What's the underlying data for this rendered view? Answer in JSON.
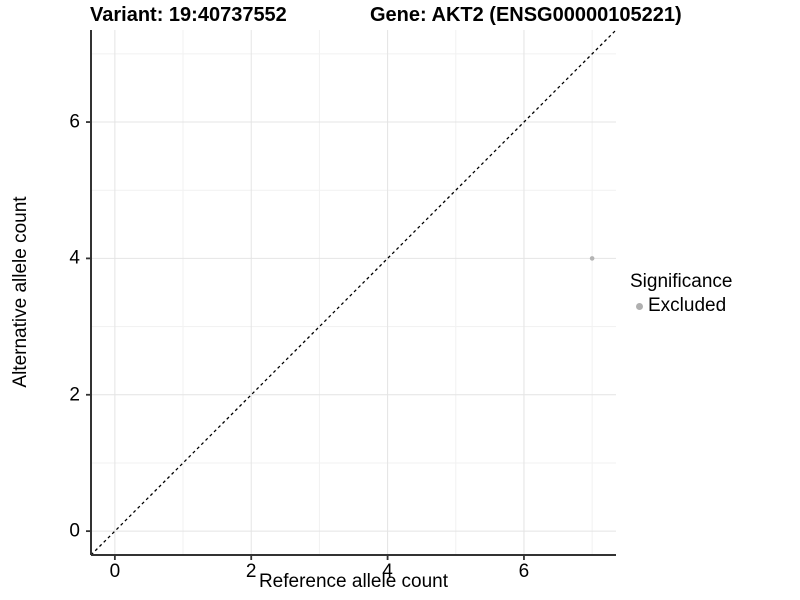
{
  "header": {
    "variant_title": "Variant: 19:40737552",
    "gene_title": "Gene: AKT2 (ENSG00000105221)"
  },
  "chart_data": {
    "type": "scatter",
    "title_left": "Variant: 19:40737552",
    "title_right": "Gene: AKT2 (ENSG00000105221)",
    "xlabel": "Reference allele count",
    "ylabel": "Alternative allele count",
    "xlim": [
      -0.35,
      7.35
    ],
    "ylim": [
      -0.35,
      7.35
    ],
    "x_ticks": [
      0,
      2,
      4,
      6
    ],
    "y_ticks": [
      0,
      2,
      4,
      6
    ],
    "x_minor_ticks": [
      1,
      3,
      5,
      7
    ],
    "y_minor_ticks": [
      1,
      3,
      5,
      7
    ],
    "grid": true,
    "reference_line": {
      "slope": 1,
      "intercept": 0,
      "style": "dashed",
      "color": "#000000"
    },
    "series": [
      {
        "name": "Excluded",
        "color": "#b4b4b4",
        "points": [
          {
            "x": 7,
            "y": 4
          }
        ]
      }
    ],
    "legend": {
      "title": "Significance",
      "position": "right",
      "items": [
        {
          "label": "Excluded",
          "color": "#b0b0b0"
        }
      ]
    },
    "colors": {
      "grid_major": "#e4e4e4",
      "grid_minor": "#f1f1f1",
      "axis_line": "#333333",
      "tick_mark": "#333333",
      "text": "#000000"
    }
  }
}
